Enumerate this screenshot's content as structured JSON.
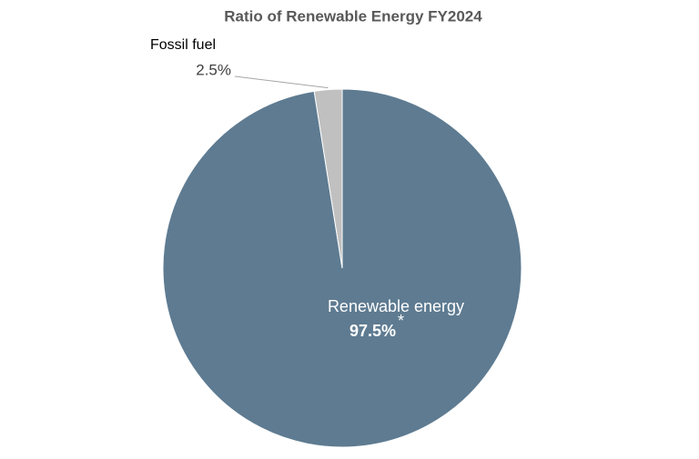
{
  "chart_data": {
    "type": "pie",
    "title": "Ratio of Renewable Energy FY2024",
    "categories": [
      "Renewable energy",
      "Fossil fuel"
    ],
    "values": [
      97.5,
      2.5
    ],
    "value_labels": [
      "97.5%",
      "2.5%"
    ],
    "annotation": "*",
    "colors": [
      "#5e7b91",
      "#c0c0c0"
    ]
  }
}
